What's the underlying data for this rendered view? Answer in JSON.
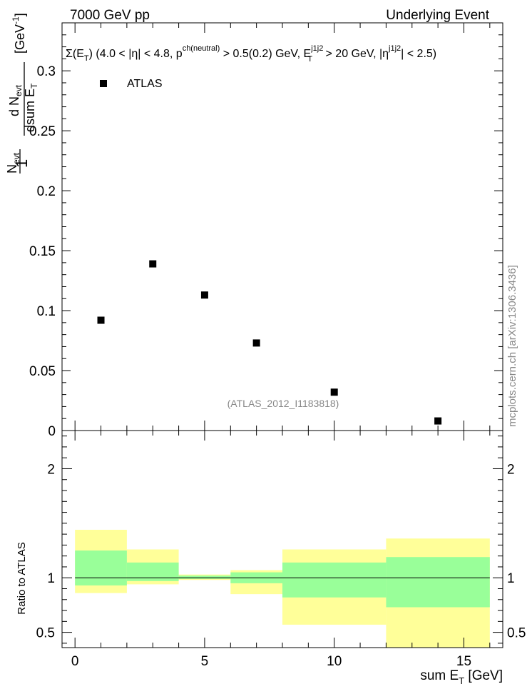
{
  "header": {
    "left": "7000 GeV pp",
    "right": "Underlying Event"
  },
  "side_label": "mcplots.cern.ch [arXiv:1306.3436]",
  "analysis_tag": "(ATLAS_2012_I1183818)",
  "legend": {
    "label": "ATLAS"
  },
  "cut_text": {
    "p1": "Σ(E",
    "p2": "T",
    "p3": ") (4.0 < |η| < 4.8, p",
    "p4": "ch(neutral)",
    "p5": " > 0.5(0.2) GeV, E",
    "p6": "j1j2",
    "p7": "T",
    "p8": " > 20 GeV, |η",
    "p9": "j1j2",
    "p10": "| < 2.5)"
  },
  "ylabel_main": {
    "one": "1",
    "n_evt": "N",
    "n_evt_sub": "evt",
    "dn": "d N",
    "dn_sub": "evt",
    "dsum": "dsum E",
    "dsum_sub": "T",
    "unit": "[GeV",
    "unit_sup": "-1",
    "unit_end": "]"
  },
  "xlabel": {
    "main": "sum E",
    "sub": "T",
    "unit": " [GeV]"
  },
  "ratio_ylabel": "Ratio to ATLAS",
  "chart_data": [
    {
      "type": "scatter",
      "name": "main",
      "series": [
        {
          "name": "ATLAS",
          "x": [
            1,
            3,
            5,
            7,
            10,
            14
          ],
          "y": [
            0.092,
            0.139,
            0.113,
            0.073,
            0.032,
            0.008
          ]
        }
      ],
      "xlim": [
        -0.5,
        16.5
      ],
      "ylim": [
        0,
        0.34
      ],
      "yticks": [
        0,
        0.05,
        0.1,
        0.15,
        0.2,
        0.25,
        0.3
      ],
      "ytick_labels": [
        "0",
        "0.05",
        "0.1",
        "0.15",
        "0.2",
        "0.25",
        "0.3"
      ]
    },
    {
      "type": "area",
      "name": "ratio",
      "bins": [
        {
          "lo": 0,
          "hi": 2,
          "stat_lo": 0.93,
          "stat_hi": 1.25,
          "tot_lo": 0.86,
          "tot_hi": 1.44
        },
        {
          "lo": 2,
          "hi": 4,
          "stat_lo": 0.97,
          "stat_hi": 1.14,
          "tot_lo": 0.94,
          "tot_hi": 1.26
        },
        {
          "lo": 4,
          "hi": 6,
          "stat_lo": 0.99,
          "stat_hi": 1.02,
          "tot_lo": 0.98,
          "tot_hi": 1.03
        },
        {
          "lo": 6,
          "hi": 8,
          "stat_lo": 0.95,
          "stat_hi": 1.05,
          "tot_lo": 0.85,
          "tot_hi": 1.07
        },
        {
          "lo": 8,
          "hi": 12,
          "stat_lo": 0.82,
          "stat_hi": 1.14,
          "tot_lo": 0.57,
          "tot_hi": 1.26
        },
        {
          "lo": 12,
          "hi": 16,
          "stat_lo": 0.73,
          "stat_hi": 1.19,
          "tot_lo": 0.36,
          "tot_hi": 1.36
        }
      ],
      "reference": 1,
      "xlim": [
        -0.5,
        16.5
      ],
      "ylim": [
        0.36,
        2.35
      ],
      "yticks": [
        0.5,
        1,
        2
      ],
      "ytick_labels": [
        "0.5",
        "1",
        "2"
      ],
      "xticks": [
        0,
        5,
        10,
        15
      ],
      "xtick_labels": [
        "0",
        "5",
        "10",
        "15"
      ],
      "colors": {
        "stat": "#99ff99",
        "total": "#ffff99",
        "line": "#000000"
      }
    }
  ]
}
